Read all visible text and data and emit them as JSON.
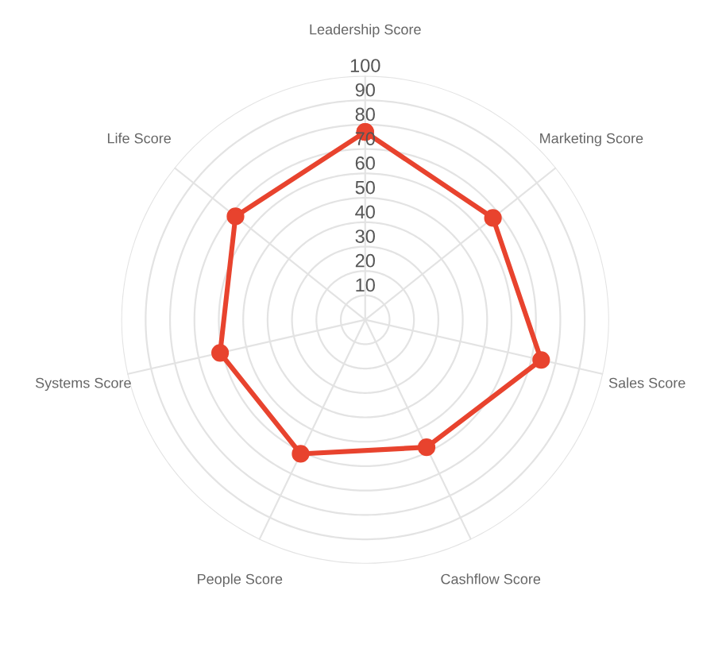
{
  "chart_data": {
    "type": "radar",
    "categories": [
      "Leadership Score",
      "Marketing Score",
      "Sales Score",
      "Cashflow Score",
      "People Score",
      "Systems Score",
      "Life Score"
    ],
    "series": [
      {
        "color": "#e8432e",
        "values": [
          77,
          67,
          74,
          58,
          61,
          61,
          68
        ]
      }
    ],
    "ylim": [
      0,
      100
    ],
    "yticks": [
      10,
      20,
      30,
      40,
      50,
      60,
      70,
      80,
      90,
      100
    ],
    "grid": true,
    "marker": "circle",
    "line_style": "solid"
  }
}
